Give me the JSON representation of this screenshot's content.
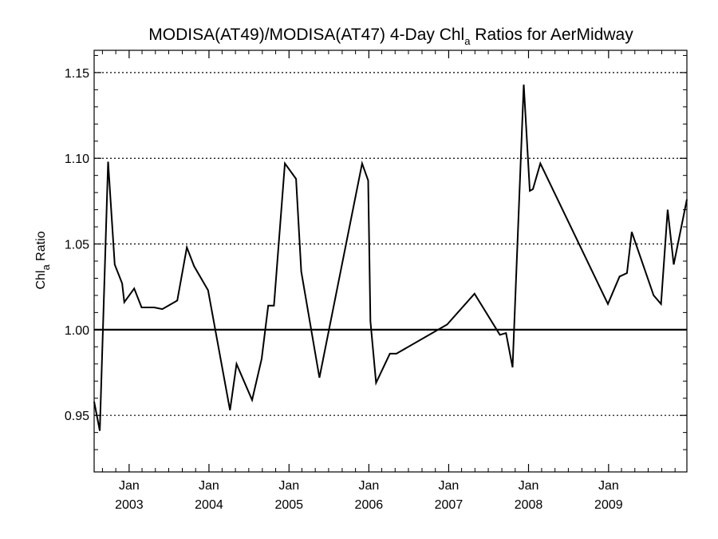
{
  "chart_data": {
    "type": "line",
    "title": {
      "prefix": "MODISA(AT49)/MODISA(AT47) 4-Day Chl",
      "subscript": "a",
      "suffix": " Ratios for AerMidway"
    },
    "ylabel": {
      "main": "Chl",
      "subscript": "a",
      "suffix": " Ratio"
    },
    "xlabel": "",
    "ylim": [
      0.917,
      1.163
    ],
    "xlim": [
      "2002-07-25",
      "2009-12-25"
    ],
    "y_ticks": [
      0.95,
      1.0,
      1.05,
      1.1,
      1.15
    ],
    "y_tick_labels": [
      "0.95",
      "1.00",
      "1.05",
      "1.10",
      "1.15"
    ],
    "x_ticks": [
      {
        "date": "2003-01-01",
        "month": "Jan",
        "year": "2003"
      },
      {
        "date": "2004-01-01",
        "month": "Jan",
        "year": "2004"
      },
      {
        "date": "2005-01-01",
        "month": "Jan",
        "year": "2005"
      },
      {
        "date": "2006-01-01",
        "month": "Jan",
        "year": "2006"
      },
      {
        "date": "2007-01-01",
        "month": "Jan",
        "year": "2007"
      },
      {
        "date": "2008-01-01",
        "month": "Jan",
        "year": "2008"
      },
      {
        "date": "2009-01-01",
        "month": "Jan",
        "year": "2009"
      }
    ],
    "grid": "dotted horizontal at major y ticks",
    "reference_line": 1.0,
    "series": [
      {
        "points": [
          [
            "2002-07-25",
            0.958
          ],
          [
            "2002-08-20",
            0.941
          ],
          [
            "2002-09-27",
            1.098
          ],
          [
            "2002-10-27",
            1.038
          ],
          [
            "2002-11-30",
            1.027
          ],
          [
            "2002-12-10",
            1.016
          ],
          [
            "2003-01-24",
            1.024
          ],
          [
            "2003-02-27",
            1.013
          ],
          [
            "2003-04-25",
            1.013
          ],
          [
            "2003-06-02",
            1.012
          ],
          [
            "2003-08-09",
            1.017
          ],
          [
            "2003-09-22",
            1.048
          ],
          [
            "2003-10-25",
            1.037
          ],
          [
            "2003-12-28",
            1.023
          ],
          [
            "2004-04-06",
            0.953
          ],
          [
            "2004-05-06",
            0.98
          ],
          [
            "2004-07-16",
            0.959
          ],
          [
            "2004-08-29",
            0.983
          ],
          [
            "2004-09-28",
            1.014
          ],
          [
            "2004-10-24",
            1.014
          ],
          [
            "2004-12-13",
            1.097
          ],
          [
            "2005-02-02",
            1.088
          ],
          [
            "2005-02-26",
            1.034
          ],
          [
            "2005-05-20",
            0.972
          ],
          [
            "2005-12-01",
            1.097
          ],
          [
            "2005-12-29",
            1.087
          ],
          [
            "2006-01-08",
            1.005
          ],
          [
            "2006-02-03",
            0.969
          ],
          [
            "2006-04-07",
            0.986
          ],
          [
            "2006-05-07",
            0.986
          ],
          [
            "2006-12-25",
            1.003
          ],
          [
            "2007-04-29",
            1.021
          ],
          [
            "2007-08-23",
            0.997
          ],
          [
            "2007-09-20",
            0.998
          ],
          [
            "2007-10-20",
            0.978
          ],
          [
            "2007-12-10",
            1.143
          ],
          [
            "2008-01-07",
            1.081
          ],
          [
            "2008-01-21",
            1.082
          ],
          [
            "2008-02-24",
            1.097
          ],
          [
            "2008-12-29",
            1.015
          ],
          [
            "2009-02-20",
            1.031
          ],
          [
            "2009-03-26",
            1.033
          ],
          [
            "2009-04-17",
            1.057
          ],
          [
            "2009-07-26",
            1.02
          ],
          [
            "2009-08-29",
            1.015
          ],
          [
            "2009-09-28",
            1.07
          ],
          [
            "2009-10-26",
            1.038
          ],
          [
            "2009-12-25",
            1.076
          ]
        ]
      }
    ]
  }
}
